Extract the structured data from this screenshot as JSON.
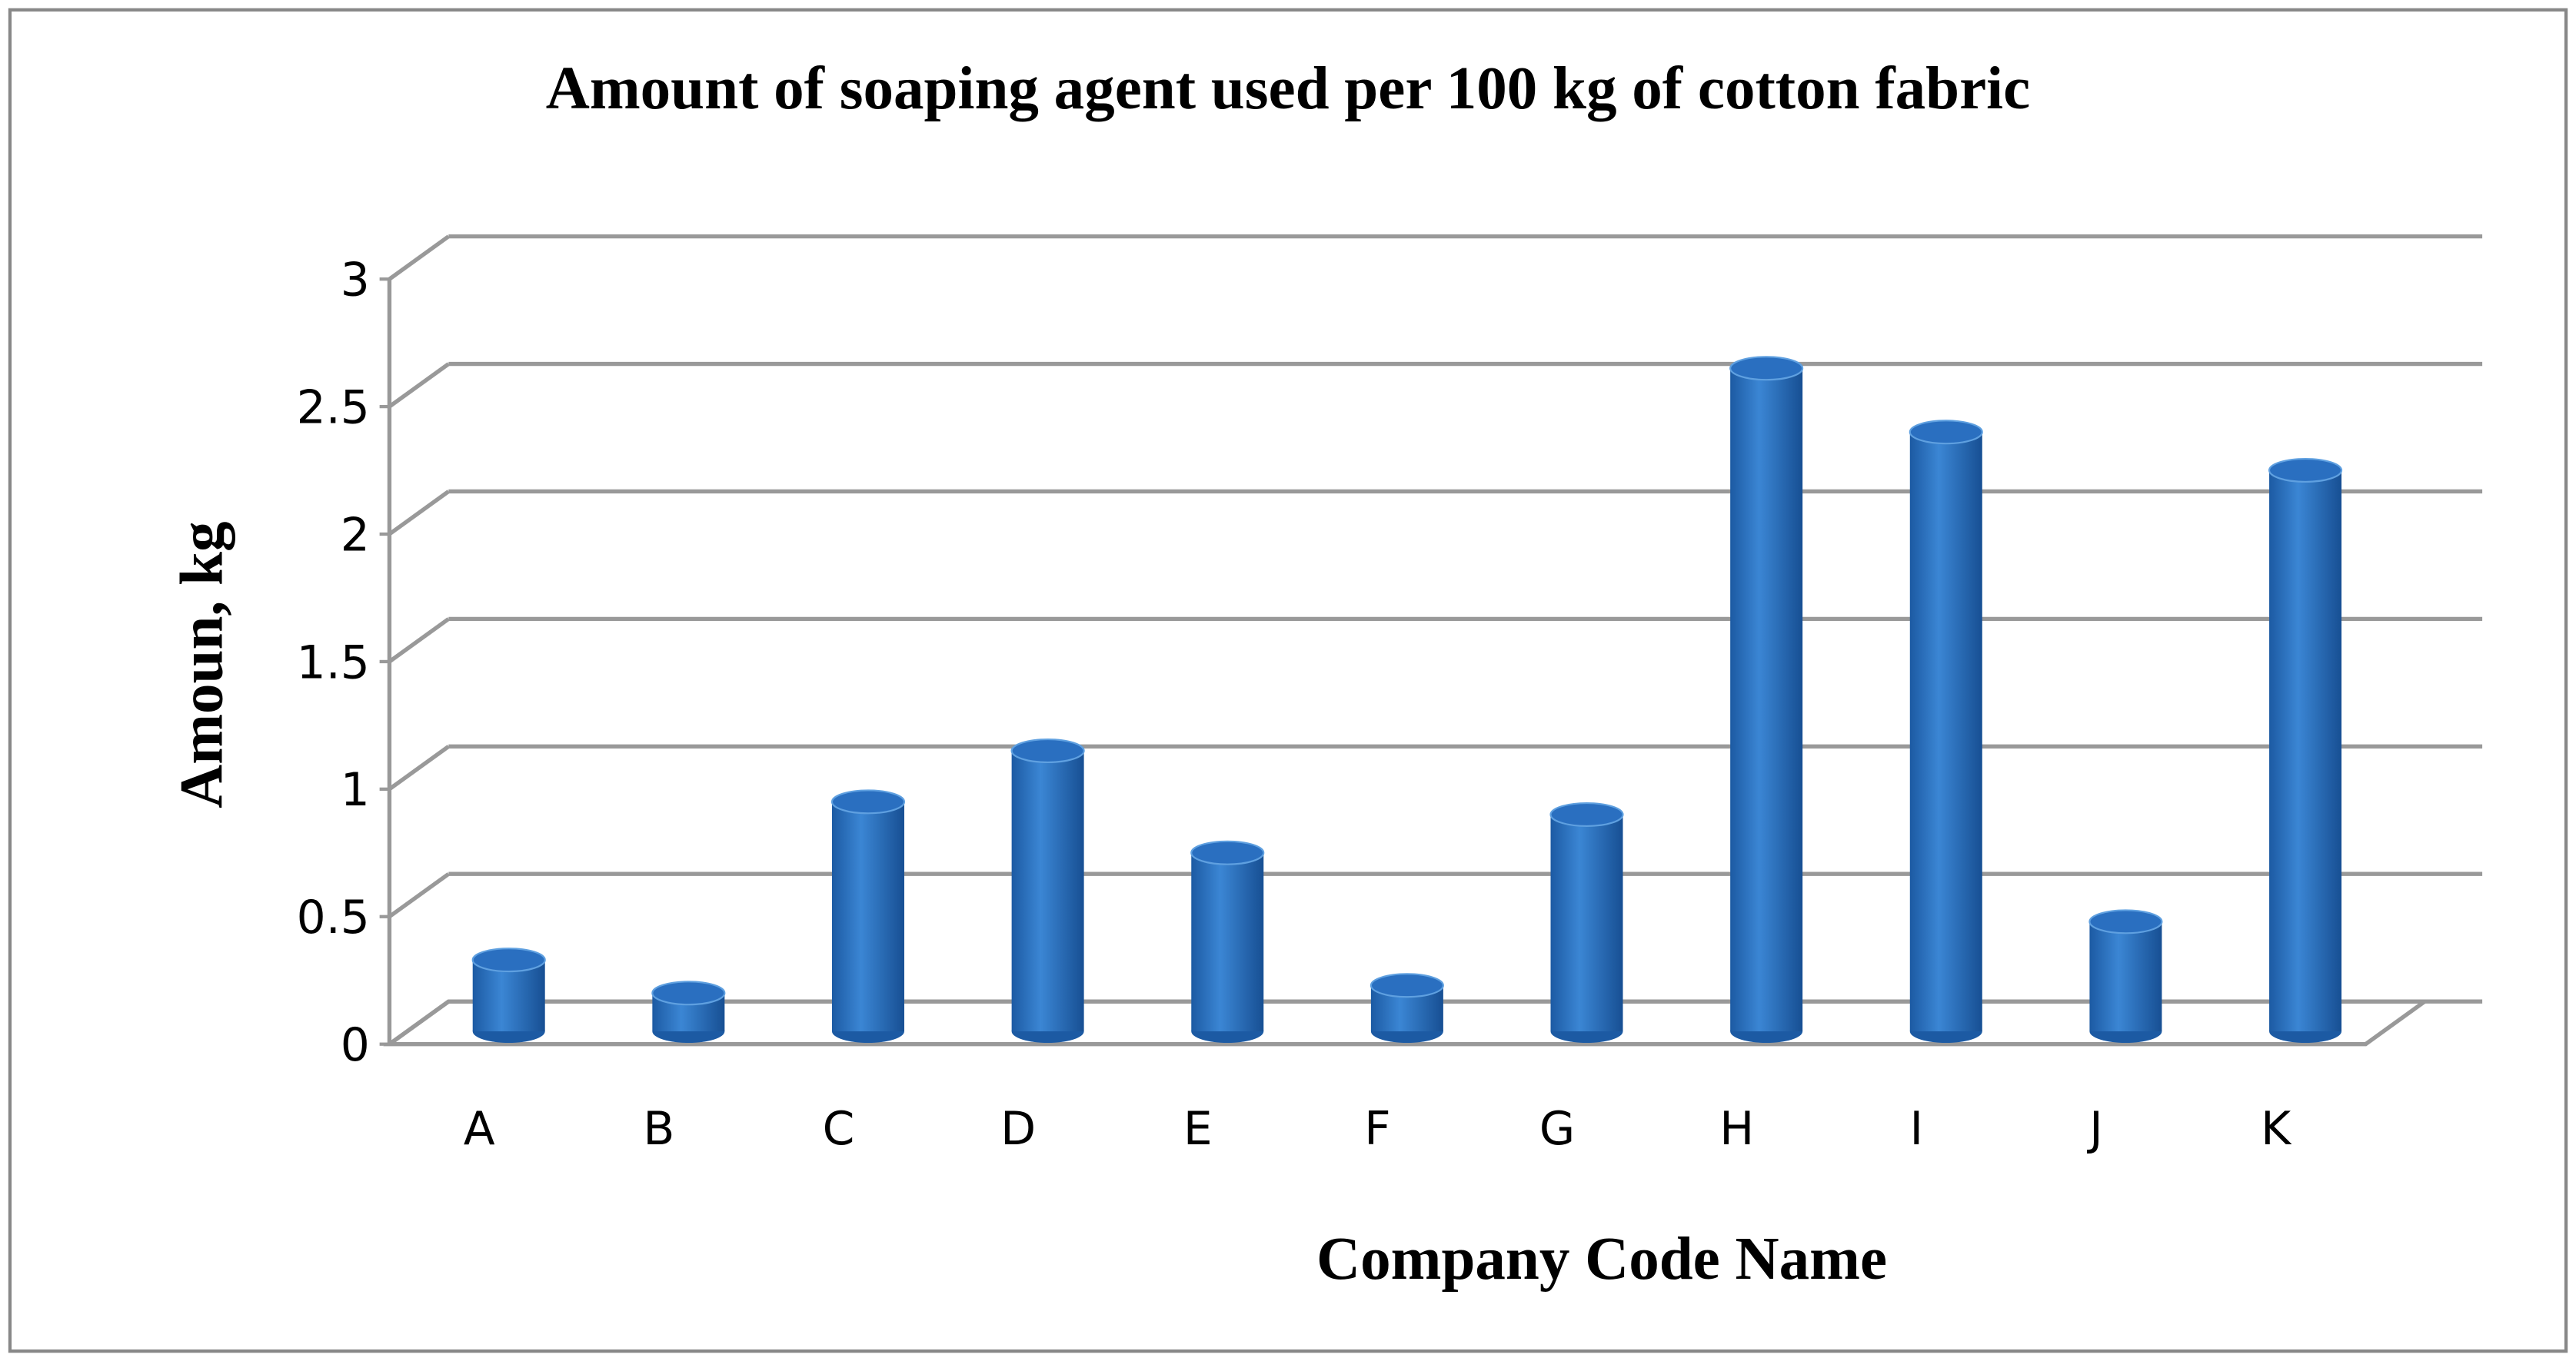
{
  "chart_data": {
    "type": "bar3d",
    "title": "Amount of soaping agent used per 100 kg of cotton fabric",
    "x_label": "Company Code Name",
    "y_label": "Amoun, kg",
    "categories": [
      "A",
      "B",
      "C",
      "D",
      "E",
      "F",
      "G",
      "H",
      "I",
      "J",
      "K"
    ],
    "values": [
      0.28,
      0.15,
      0.9,
      1.1,
      0.7,
      0.18,
      0.85,
      2.6,
      2.35,
      0.43,
      2.2
    ],
    "color": "#2a6fc0",
    "ylim": [
      0,
      3
    ],
    "yticks": [
      0,
      0.5,
      1,
      1.5,
      2,
      2.5,
      3
    ],
    "grid": true
  }
}
